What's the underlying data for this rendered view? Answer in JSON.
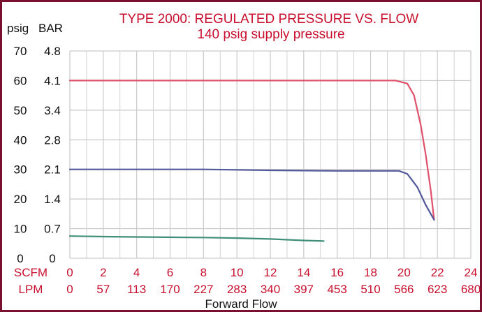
{
  "chart_data": {
    "type": "line",
    "title": "TYPE 2000: REGULATED PRESSURE VS. FLOW",
    "subtitle": "140 psig supply pressure",
    "xlabel": "Forward Flow",
    "left_axis_units": {
      "psig": "psig",
      "bar": "BAR"
    },
    "x_axis_units": {
      "scfm": "SCFM",
      "lpm": "LPM"
    },
    "y_ticks_psig": [
      "0",
      "10",
      "20",
      "30",
      "40",
      "50",
      "60",
      "70"
    ],
    "y_ticks_bar": [
      "0",
      "0.7",
      "1.4",
      "2.1",
      "2.8",
      "3.4",
      "4.1",
      "4.8"
    ],
    "x_ticks_scfm": [
      "0",
      "2",
      "4",
      "6",
      "8",
      "10",
      "12",
      "14",
      "16",
      "18",
      "20",
      "22",
      "24"
    ],
    "x_ticks_lpm": [
      "0",
      "57",
      "113",
      "170",
      "227",
      "283",
      "340",
      "397",
      "453",
      "510",
      "566",
      "623",
      "680"
    ],
    "xlim": [
      0,
      24
    ],
    "ylim": [
      0,
      70
    ],
    "grid": true,
    "series": [
      {
        "color": "#e0506a",
        "points": [
          [
            0,
            60
          ],
          [
            4,
            60
          ],
          [
            8,
            60
          ],
          [
            12,
            60
          ],
          [
            16,
            60
          ],
          [
            19.5,
            60
          ],
          [
            20.2,
            59
          ],
          [
            20.6,
            55
          ],
          [
            21,
            45
          ],
          [
            21.3,
            35
          ],
          [
            21.6,
            23
          ],
          [
            21.8,
            13
          ]
        ]
      },
      {
        "color": "#50589a",
        "points": [
          [
            0,
            30
          ],
          [
            4,
            30
          ],
          [
            8,
            30
          ],
          [
            12,
            29.7
          ],
          [
            16,
            29.5
          ],
          [
            19.7,
            29.5
          ],
          [
            20.2,
            28.5
          ],
          [
            20.8,
            24
          ],
          [
            21.3,
            18
          ],
          [
            21.8,
            13
          ]
        ]
      },
      {
        "color": "#3f8f78",
        "points": [
          [
            0,
            7.5
          ],
          [
            2,
            7.3
          ],
          [
            4,
            7.2
          ],
          [
            8,
            7
          ],
          [
            10,
            6.8
          ],
          [
            12,
            6.5
          ],
          [
            14,
            6.0
          ],
          [
            15.2,
            5.8
          ]
        ]
      }
    ]
  }
}
